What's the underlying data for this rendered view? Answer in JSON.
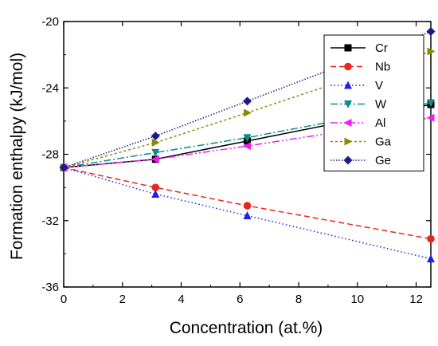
{
  "chart_data": {
    "type": "line",
    "xlabel": "Concentration (at.%)",
    "ylabel": "Formation enthalpy (kJ/mol)",
    "xlim": [
      0,
      12.5
    ],
    "ylim": [
      -36,
      -20
    ],
    "xticks": [
      0,
      2,
      4,
      6,
      8,
      10,
      12
    ],
    "yticks": [
      -36,
      -32,
      -28,
      -24,
      -20
    ],
    "grid": false,
    "legend_position": "top-right",
    "x": [
      0,
      3.125,
      6.25,
      12.5
    ],
    "series": [
      {
        "name": "Cr",
        "values": [
          -28.8,
          -28.3,
          -27.2,
          -25.0
        ],
        "color": "#000000",
        "marker": "square",
        "line_style": "solid"
      },
      {
        "name": "Nb",
        "values": [
          -28.8,
          -30.0,
          -31.1,
          -33.1
        ],
        "color": "#e8281e",
        "marker": "circle",
        "line_style": "dashed"
      },
      {
        "name": "V",
        "values": [
          -28.8,
          -30.4,
          -31.7,
          -34.3
        ],
        "color": "#1f1fe8",
        "marker": "triangle-up",
        "line_style": "dotted"
      },
      {
        "name": "W",
        "values": [
          -28.8,
          -27.9,
          -27.0,
          -24.9
        ],
        "color": "#0f8a8a",
        "marker": "triangle-down",
        "line_style": "dashdot"
      },
      {
        "name": "Al",
        "values": [
          -28.8,
          -28.3,
          -27.5,
          -25.8
        ],
        "color": "#ee1fee",
        "marker": "triangle-left",
        "line_style": "dashdotdot"
      },
      {
        "name": "Ga",
        "values": [
          -28.8,
          -27.3,
          -25.5,
          -21.8
        ],
        "color": "#8a8a00",
        "marker": "triangle-right",
        "line_style": "short-dash"
      },
      {
        "name": "Ge",
        "values": [
          -28.8,
          -26.9,
          -24.8,
          -20.6
        ],
        "color": "#1a1a8a",
        "marker": "diamond",
        "line_style": "short-dot"
      }
    ]
  }
}
